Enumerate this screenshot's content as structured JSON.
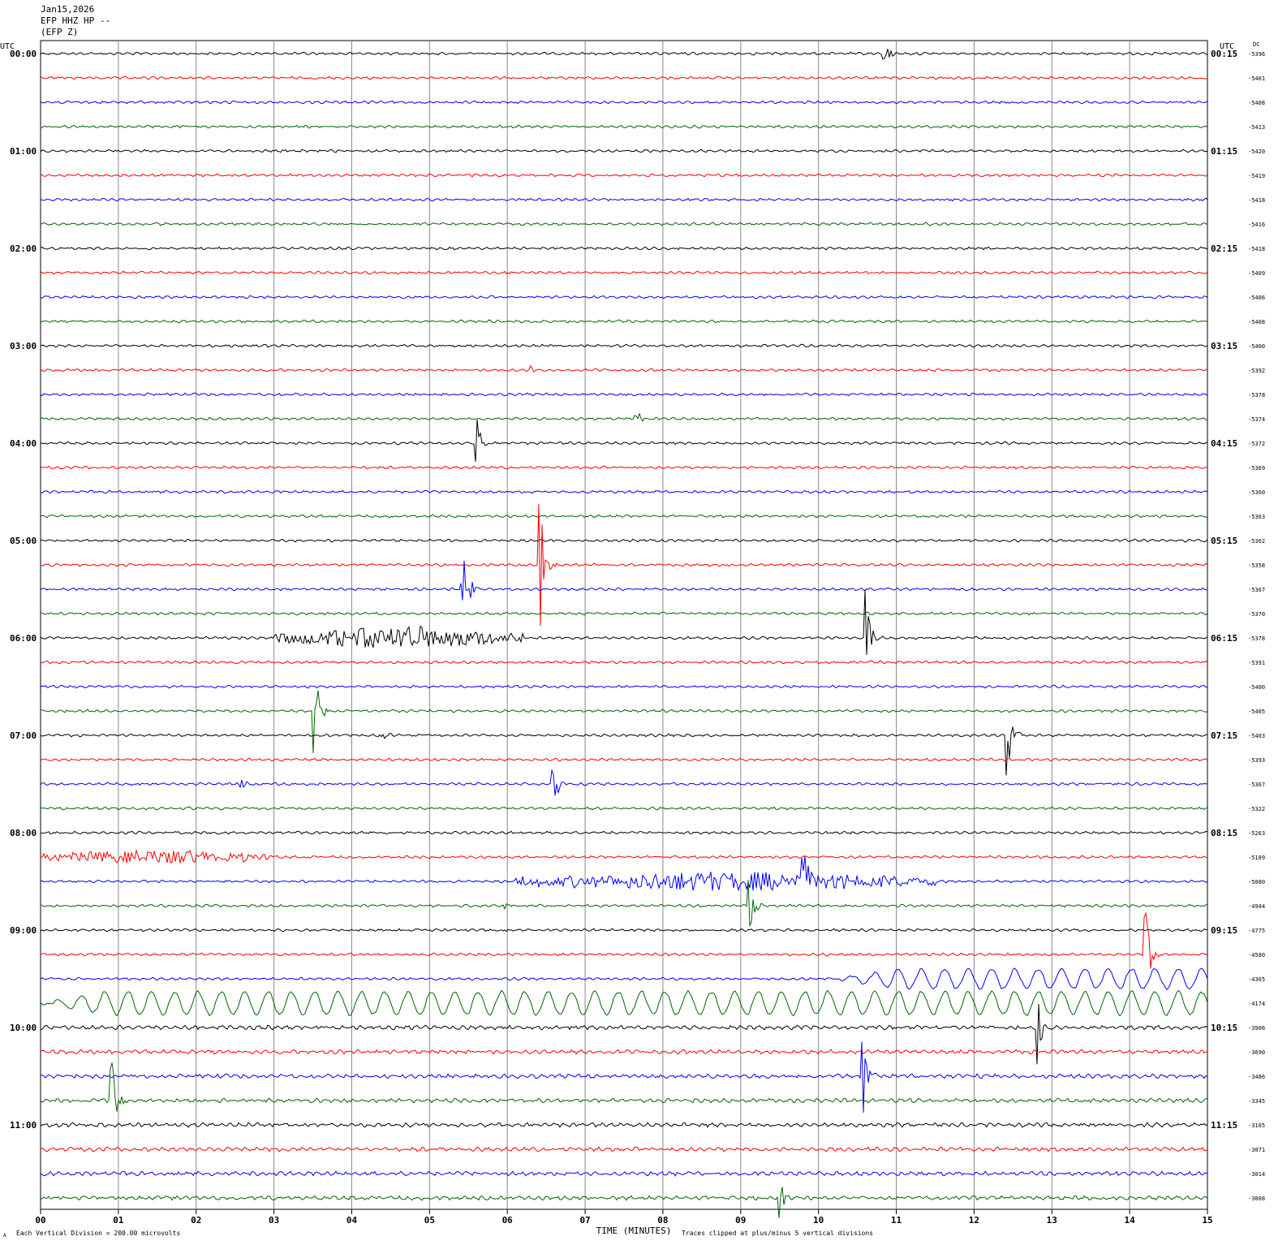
{
  "header": {
    "date": "Jan15,2026",
    "station": "EFP HHZ HP --",
    "component": "(EFP Z)"
  },
  "chart_data": {
    "type": "line",
    "title": "Jan15,2026",
    "xlabel": "TIME (MINUTES)",
    "x_ticks": [
      "00",
      "01",
      "02",
      "03",
      "04",
      "05",
      "06",
      "07",
      "08",
      "09",
      "10",
      "11",
      "12",
      "13",
      "14",
      "15"
    ],
    "xlim": [
      0,
      15
    ],
    "left_axis_label": "UTC",
    "right_axis_label": "UTC",
    "dc_label": "DC",
    "left_hour_labels": [
      {
        "row": 0,
        "label": "00:00"
      },
      {
        "row": 4,
        "label": "01:00"
      },
      {
        "row": 8,
        "label": "02:00"
      },
      {
        "row": 12,
        "label": "03:00"
      },
      {
        "row": 16,
        "label": "04:00"
      },
      {
        "row": 20,
        "label": "05:00"
      },
      {
        "row": 24,
        "label": "06:00"
      },
      {
        "row": 28,
        "label": "07:00"
      },
      {
        "row": 32,
        "label": "08:00"
      },
      {
        "row": 36,
        "label": "09:00"
      },
      {
        "row": 40,
        "label": "10:00"
      },
      {
        "row": 44,
        "label": "11:00"
      }
    ],
    "right_hour_labels": [
      {
        "row": 0,
        "label": "00:15"
      },
      {
        "row": 4,
        "label": "01:15"
      },
      {
        "row": 8,
        "label": "02:15"
      },
      {
        "row": 12,
        "label": "03:15"
      },
      {
        "row": 16,
        "label": "04:15"
      },
      {
        "row": 20,
        "label": "05:15"
      },
      {
        "row": 24,
        "label": "06:15"
      },
      {
        "row": 28,
        "label": "07:15"
      },
      {
        "row": 32,
        "label": "08:15"
      },
      {
        "row": 36,
        "label": "09:15"
      },
      {
        "row": 40,
        "label": "10:15"
      },
      {
        "row": 44,
        "label": "11:15"
      }
    ],
    "dc_values": [
      "-5396",
      "-5401",
      "-5408",
      "-5413",
      "-5420",
      "-5419",
      "-5418",
      "-5416",
      "-5418",
      "-5409",
      "-5406",
      "-5408",
      "-5400",
      "-5392",
      "-5378",
      "-5374",
      "-5372",
      "-5369",
      "-5360",
      "-5363",
      "-5362",
      "-5358",
      "-5367",
      "-5370",
      "-5378",
      "-5391",
      "-5400",
      "-5405",
      "-5403",
      "-5393",
      "-5367",
      "-5322",
      "-5263",
      "-5189",
      "-5080",
      "-4944",
      "-4775",
      "-4580",
      "-4365",
      "-4174",
      "-3906",
      "-3690",
      "-3486",
      "-3345",
      "-3165",
      "-3071",
      "-3014",
      "-3008"
    ],
    "trace_colors": [
      "#000000",
      "#ff0000",
      "#0000ff",
      "#006400"
    ],
    "events": [
      {
        "row": 0,
        "minute": 10.83,
        "amp": 32
      },
      {
        "row": 13,
        "minute": 6.3,
        "amp": 4
      },
      {
        "row": 15,
        "minute": 7.65,
        "amp": 14
      },
      {
        "row": 16,
        "minute": 5.58,
        "amp": 60
      },
      {
        "row": 21,
        "minute": 6.42,
        "amp": 110
      },
      {
        "row": 22,
        "minute": 5.42,
        "amp": 100
      },
      {
        "row": 24,
        "minute": 10.6,
        "amp": 60
      },
      {
        "row": 27,
        "minute": 3.52,
        "amp": 70
      },
      {
        "row": 28,
        "minute": 12.42,
        "amp": 60
      },
      {
        "row": 28,
        "minute": 4.4,
        "amp": 6
      },
      {
        "row": 30,
        "minute": 6.58,
        "amp": 45
      },
      {
        "row": 30,
        "minute": 2.58,
        "amp": 8
      },
      {
        "row": 34,
        "minute": 9.8,
        "amp": 40
      },
      {
        "row": 35,
        "minute": 9.1,
        "amp": 45
      },
      {
        "row": 35,
        "minute": 5.95,
        "amp": 8
      },
      {
        "row": 37,
        "minute": 14.2,
        "amp": 60
      },
      {
        "row": 40,
        "minute": 12.8,
        "amp": 70
      },
      {
        "row": 42,
        "minute": 10.57,
        "amp": 60
      },
      {
        "row": 43,
        "minute": 0.9,
        "amp": 75
      },
      {
        "row": 47,
        "minute": 9.5,
        "amp": 50
      }
    ],
    "noise_bursts": [
      {
        "row": 24,
        "start": 3.0,
        "end": 6.2,
        "amp": 14
      },
      {
        "row": 33,
        "start": 0.0,
        "end": 3.0,
        "amp": 9
      },
      {
        "row": 34,
        "start": 6.1,
        "end": 11.5,
        "amp": 12
      }
    ],
    "microseism": [
      {
        "row": 38,
        "start": 10.2,
        "end": 15.0,
        "amp": 12
      },
      {
        "row": 39,
        "start": 0.0,
        "end": 15.0,
        "amp": 14
      }
    ],
    "footer_left": "Each Vertical Division =  200.00 microvolts",
    "footer_right": "Traces clipped at plus/minus 5 vertical divisions",
    "footer_corner": "A"
  }
}
